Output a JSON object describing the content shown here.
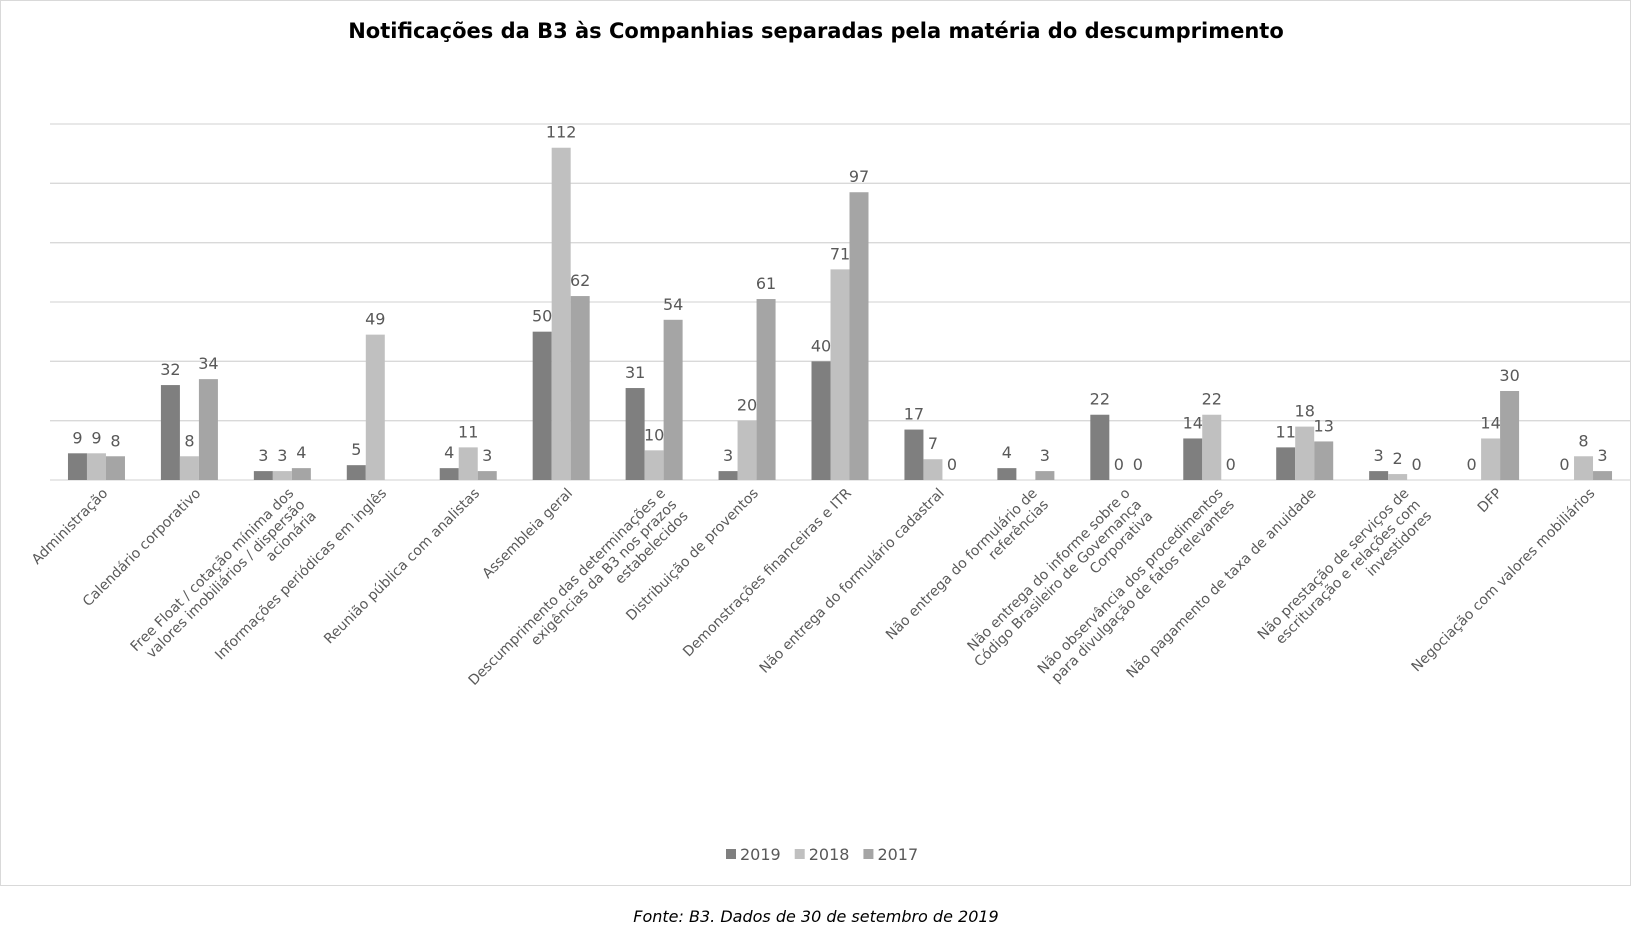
{
  "chart_data": {
    "type": "bar",
    "title": "Notificações da B3 às Companhias separadas pela matéria do descumprimento",
    "categories": [
      "Administração",
      "Calendário corporativo",
      "Free Float / cotação mínima dos valores imobiliários / dispersão acionária",
      "Informações periódicas em inglês",
      "Reunião pública com analistas",
      "Assembleia geral",
      "Descumprimento das determinações e exigências da B3 nos prazos estabelecidos",
      "Distribuição de proventos",
      "Demonstrações financeiras e ITR",
      "Não entrega do formulário cadastral",
      "Não entrega do formulário de referências",
      "Não entrega do informe sobre o Código Brasileiro de Governança Corporativa",
      "Não observância dos procedimentos para divulgação de fatos relevantes",
      "Não pagamento de taxa de anuidade",
      "Não prestação de serviços de escrituração e relações com investidores",
      "DFP",
      "Negociação com valores mobiliários"
    ],
    "series": [
      {
        "name": "2019",
        "color": "#7f7f7f",
        "values": [
          9,
          32,
          3,
          5,
          4,
          50,
          31,
          3,
          40,
          17,
          4,
          22,
          14,
          11,
          3,
          0,
          0
        ]
      },
      {
        "name": "2018",
        "color": "#c0c0c0",
        "values": [
          9,
          8,
          3,
          49,
          11,
          112,
          10,
          20,
          71,
          7,
          null,
          0,
          22,
          18,
          2,
          14,
          8
        ]
      },
      {
        "name": "2017",
        "color": "#a5a5a5",
        "values": [
          8,
          34,
          4,
          null,
          3,
          62,
          54,
          61,
          97,
          0,
          3,
          0,
          0,
          13,
          0,
          30,
          3
        ]
      }
    ],
    "ylim": [
      0,
      120
    ],
    "yticks": [
      0,
      20,
      40,
      60,
      80,
      100,
      120
    ],
    "grid": true,
    "legend": "bottom",
    "source": "Fonte: B3. Dados de 30 de setembro de 2019"
  }
}
